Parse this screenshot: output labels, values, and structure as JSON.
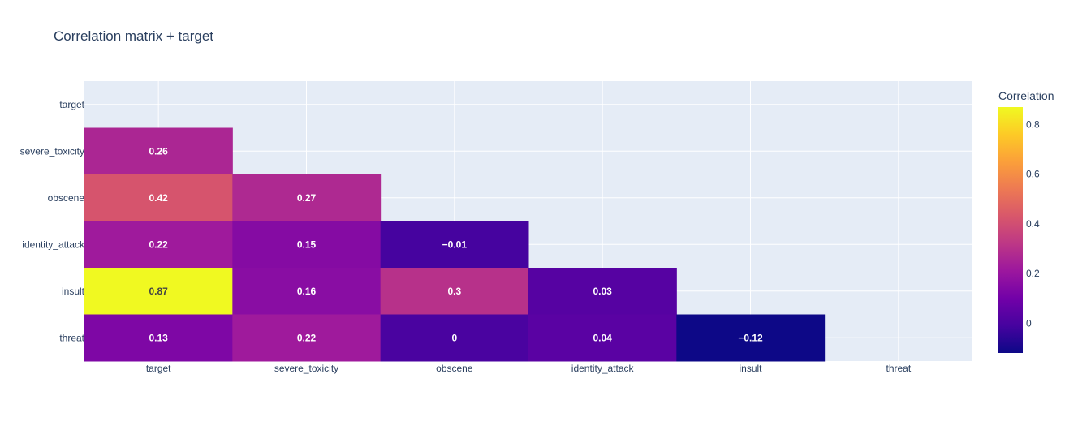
{
  "chart_data": {
    "type": "heatmap",
    "title": "Correlation matrix + target",
    "x_categories": [
      "target",
      "severe_toxicity",
      "obscene",
      "identity_attack",
      "insult",
      "threat"
    ],
    "y_categories": [
      "target",
      "severe_toxicity",
      "obscene",
      "identity_attack",
      "insult",
      "threat"
    ],
    "z": [
      [
        null,
        null,
        null,
        null,
        null,
        null
      ],
      [
        0.26,
        null,
        null,
        null,
        null,
        null
      ],
      [
        0.42,
        0.27,
        null,
        null,
        null,
        null
      ],
      [
        0.22,
        0.15,
        -0.01,
        null,
        null,
        null
      ],
      [
        0.87,
        0.16,
        0.3,
        0.03,
        null,
        null
      ],
      [
        0.13,
        0.22,
        0,
        0.04,
        -0.12,
        null
      ]
    ],
    "cell_text": [
      [
        "",
        "",
        "",
        "",
        "",
        ""
      ],
      [
        "0.26",
        "",
        "",
        "",
        "",
        ""
      ],
      [
        "0.42",
        "0.27",
        "",
        "",
        "",
        ""
      ],
      [
        "0.22",
        "0.15",
        "−0.01",
        "",
        "",
        ""
      ],
      [
        "0.87",
        "0.16",
        "0.3",
        "0.03",
        "",
        ""
      ],
      [
        "0.13",
        "0.22",
        "0",
        "0.04",
        "−0.12",
        ""
      ]
    ],
    "colorscale": "plasma",
    "zmin": -0.12,
    "zmax": 0.87,
    "grid": true,
    "colorbar": {
      "title": "Correlation",
      "ticks": [
        0,
        0.2,
        0.4,
        0.6,
        0.8
      ],
      "tick_labels": [
        "0",
        "0.2",
        "0.4",
        "0.6",
        "0.8"
      ]
    },
    "colors": {
      "plot_background": "#e5ecf6",
      "grid": "#ffffff",
      "text": "#2a3f5f"
    }
  }
}
